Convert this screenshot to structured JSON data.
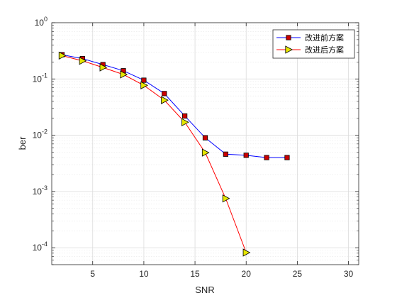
{
  "chart_data": {
    "type": "line",
    "title": "",
    "xlabel": "SNR",
    "ylabel": "ber",
    "xlim": [
      1,
      31
    ],
    "ylim": [
      5e-05,
      1
    ],
    "yscale": "log",
    "grid": true,
    "minor_grid": true,
    "legend_position": "top-right",
    "x_ticks": [
      5,
      10,
      15,
      20,
      25,
      30
    ],
    "y_ticks": [
      {
        "value": 1,
        "base": "10",
        "exp": "0"
      },
      {
        "value": 0.1,
        "base": "10",
        "exp": "-1"
      },
      {
        "value": 0.01,
        "base": "10",
        "exp": "-2"
      },
      {
        "value": 0.001,
        "base": "10",
        "exp": "-3"
      },
      {
        "value": 0.0001,
        "base": "10",
        "exp": "-4"
      }
    ],
    "series": [
      {
        "name": "改进前方案",
        "line_color": "#0000ff",
        "marker": "square",
        "marker_fill": "#cc0000",
        "x": [
          2,
          4,
          6,
          8,
          10,
          12,
          14,
          16,
          18,
          20,
          22,
          24
        ],
        "values": [
          0.27,
          0.23,
          0.18,
          0.14,
          0.095,
          0.055,
          0.022,
          0.009,
          0.0046,
          0.0044,
          0.004,
          0.004
        ]
      },
      {
        "name": "改进后方案",
        "line_color": "#ff0000",
        "marker": "triangle-right",
        "marker_fill": "#e6e600",
        "x": [
          2,
          4,
          6,
          8,
          10,
          12,
          14,
          16,
          18,
          20
        ],
        "values": [
          0.26,
          0.21,
          0.16,
          0.12,
          0.077,
          0.042,
          0.017,
          0.0049,
          0.00075,
          8.2e-05
        ]
      }
    ]
  }
}
